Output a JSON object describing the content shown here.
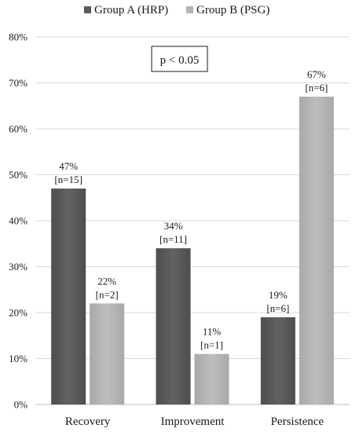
{
  "chart_data": {
    "type": "bar",
    "categories": [
      "Recovery",
      "Improvement",
      "Persistence"
    ],
    "series": [
      {
        "name": "Group A (HRP)",
        "color": "#5a5a5a",
        "values": [
          47,
          34,
          19
        ],
        "labels": [
          "47%",
          "34%",
          "19%"
        ],
        "counts": [
          "[n=15]",
          "[n=11]",
          "[n=6]"
        ]
      },
      {
        "name": "Group B (PSG)",
        "color": "#b4b4b4",
        "values": [
          22,
          11,
          67
        ],
        "labels": [
          "22%",
          "11%",
          "67%"
        ],
        "counts": [
          "[n=2]",
          "[n=1]",
          "[n=6]"
        ]
      }
    ],
    "yticks": [
      "0%",
      "10%",
      "20%",
      "30%",
      "40%",
      "50%",
      "60%",
      "70%",
      "80%"
    ],
    "ylim": [
      0,
      80
    ],
    "grid": true,
    "legend_position": "top-center",
    "annotation": "p < 0.05",
    "title": "",
    "xlabel": "",
    "ylabel": ""
  }
}
